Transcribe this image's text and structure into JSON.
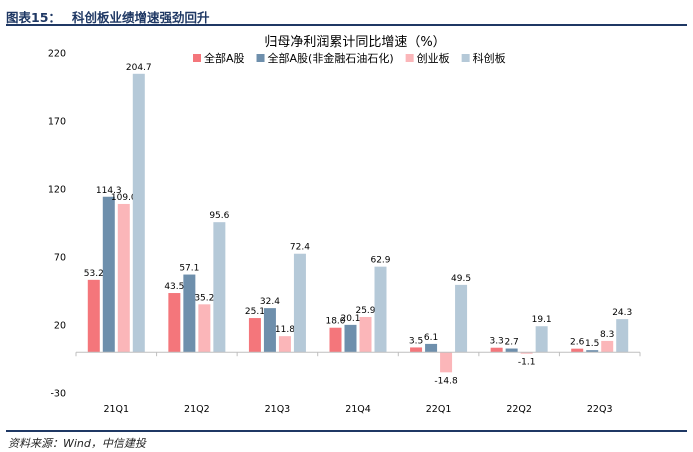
{
  "header": {
    "figure_number": "图表15：",
    "title": "科创板业绩增速强劲回升"
  },
  "source": "资料来源：Wind，中信建投",
  "chart_data": {
    "type": "bar",
    "title": "归母净利润累计同比增速（%）",
    "xlabel": "",
    "ylabel": "",
    "categories": [
      "21Q1",
      "21Q2",
      "21Q3",
      "21Q4",
      "22Q1",
      "22Q2",
      "22Q3"
    ],
    "series": [
      {
        "name": "全部A股",
        "color": "#f4767b",
        "values": [
          53.2,
          43.5,
          25.1,
          18.0,
          3.5,
          3.3,
          2.6
        ]
      },
      {
        "name": "全部A股(非金融石油石化)",
        "color": "#6e8fac",
        "values": [
          114.3,
          57.1,
          32.4,
          20.1,
          6.1,
          2.7,
          1.5
        ]
      },
      {
        "name": "创业板",
        "color": "#fbb6b9",
        "values": [
          109.0,
          35.2,
          11.8,
          25.9,
          -14.8,
          -1.1,
          8.3
        ]
      },
      {
        "name": "科创板",
        "color": "#b5c9d8",
        "values": [
          204.7,
          95.6,
          72.4,
          62.9,
          49.5,
          19.1,
          24.3
        ]
      }
    ],
    "data_labels": [
      [
        "53.2",
        "114.3",
        "109.0",
        "204.7"
      ],
      [
        "43.5",
        "57.1",
        "35.2",
        "95.6"
      ],
      [
        "25.1",
        "32.4",
        "11.8",
        "72.4"
      ],
      [
        "18.0",
        "20.1",
        "25.9",
        "62.9"
      ],
      [
        "3.5",
        "6.1",
        "-14.8",
        "49.5"
      ],
      [
        "3.3",
        "2.7",
        "-1.1",
        "19.1"
      ],
      [
        "2.6",
        "1.5",
        "8.3",
        "24.3"
      ]
    ],
    "ylim": [
      -30,
      220
    ],
    "yticks": [
      -30,
      20,
      70,
      120,
      170,
      220
    ],
    "legend_position": "top",
    "grid": false
  }
}
